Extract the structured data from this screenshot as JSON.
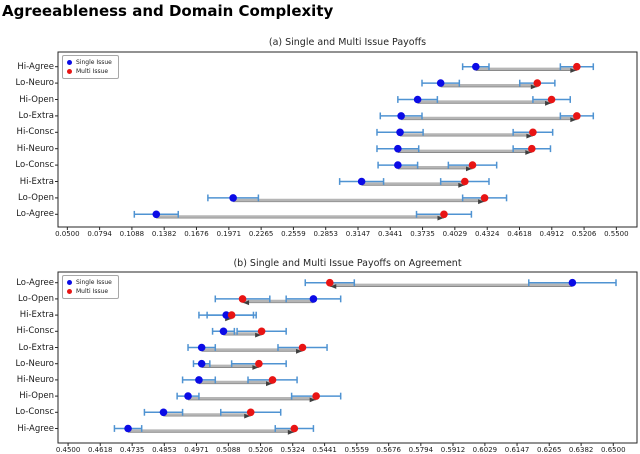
{
  "page_title": "Agreeableness and Domain Complexity",
  "legend": {
    "single": "Single Issue",
    "multi": "Multi Issue"
  },
  "colors": {
    "single": "#0b0be6",
    "multi": "#e81414",
    "errorbar": "#4f93d2",
    "connector": "#b5b5b5",
    "connector_dark": "#8a8a8a",
    "arrow": "#3f3f3f",
    "frame": "#262626",
    "text": "#1a1a1a"
  },
  "chart_data": [
    {
      "id": "a",
      "type": "scatter",
      "title": "(a) Single and Multi Issue Payoffs",
      "xlabel": "",
      "ylabel": "",
      "grid": false,
      "legend_position": "upper-left",
      "categories": [
        "Hi-Agree",
        "Lo-Neuro",
        "Hi-Open",
        "Lo-Extra",
        "Hi-Consc",
        "Hi-Neuro",
        "Lo-Consc",
        "Hi-Extra",
        "Lo-Open",
        "Lo-Agree"
      ],
      "xlim": [
        0.0415,
        0.5688
      ],
      "xtick_labels": [
        "0.0500",
        "0.0794",
        "0.1088",
        "0.1382",
        "0.1676",
        "0.1971",
        "0.2265",
        "0.2559",
        "0.2853",
        "0.3147",
        "0.3441",
        "0.3735",
        "0.4029",
        "0.4324",
        "0.4618",
        "0.4912",
        "0.5206",
        "0.5500"
      ],
      "series": [
        {
          "name": "Single Issue",
          "color_key": "single",
          "values": [
            0.422,
            0.39,
            0.369,
            0.354,
            0.353,
            0.351,
            0.351,
            0.318,
            0.201,
            0.131
          ],
          "errors": [
            0.012,
            0.017,
            0.018,
            0.019,
            0.021,
            0.019,
            0.018,
            0.02,
            0.023,
            0.02
          ]
        },
        {
          "name": "Multi Issue",
          "color_key": "multi",
          "values": [
            0.514,
            0.478,
            0.491,
            0.514,
            0.474,
            0.473,
            0.419,
            0.412,
            0.43,
            0.393
          ],
          "errors": [
            0.015,
            0.016,
            0.017,
            0.015,
            0.018,
            0.017,
            0.022,
            0.022,
            0.02,
            0.025
          ]
        }
      ]
    },
    {
      "id": "b",
      "type": "scatter",
      "title": "(b) Single and Multi Issue Payoffs on Agreement",
      "xlabel": "",
      "ylabel": "",
      "grid": false,
      "legend_position": "upper-left",
      "categories": [
        "Lo-Agree",
        "Lo-Open",
        "Hi-Extra",
        "Hi-Consc",
        "Lo-Extra",
        "Lo-Neuro",
        "Hi-Neuro",
        "Hi-Open",
        "Lo-Consc",
        "Hi-Agree"
      ],
      "xlim": [
        0.4463,
        0.6587
      ],
      "xtick_labels": [
        "0.4500",
        "0.4618",
        "0.4735",
        "0.4853",
        "0.4971",
        "0.5088",
        "0.5206",
        "0.5324",
        "0.5441",
        "0.5559",
        "0.5676",
        "0.5794",
        "0.5912",
        "0.6029",
        "0.6147",
        "0.6265",
        "0.6382",
        "0.6500"
      ],
      "series": [
        {
          "name": "Single Issue",
          "color_key": "single",
          "values": [
            0.635,
            0.54,
            0.508,
            0.507,
            0.499,
            0.499,
            0.498,
            0.494,
            0.485,
            0.472
          ],
          "errors": [
            0.016,
            0.01,
            0.01,
            0.004,
            0.005,
            0.003,
            0.006,
            0.004,
            0.007,
            0.005
          ]
        },
        {
          "name": "Multi Issue",
          "color_key": "multi",
          "values": [
            0.546,
            0.514,
            0.51,
            0.521,
            0.536,
            0.52,
            0.525,
            0.541,
            0.517,
            0.533
          ],
          "errors": [
            0.009,
            0.01,
            0.009,
            0.009,
            0.009,
            0.01,
            0.009,
            0.009,
            0.011,
            0.007
          ]
        }
      ]
    }
  ]
}
